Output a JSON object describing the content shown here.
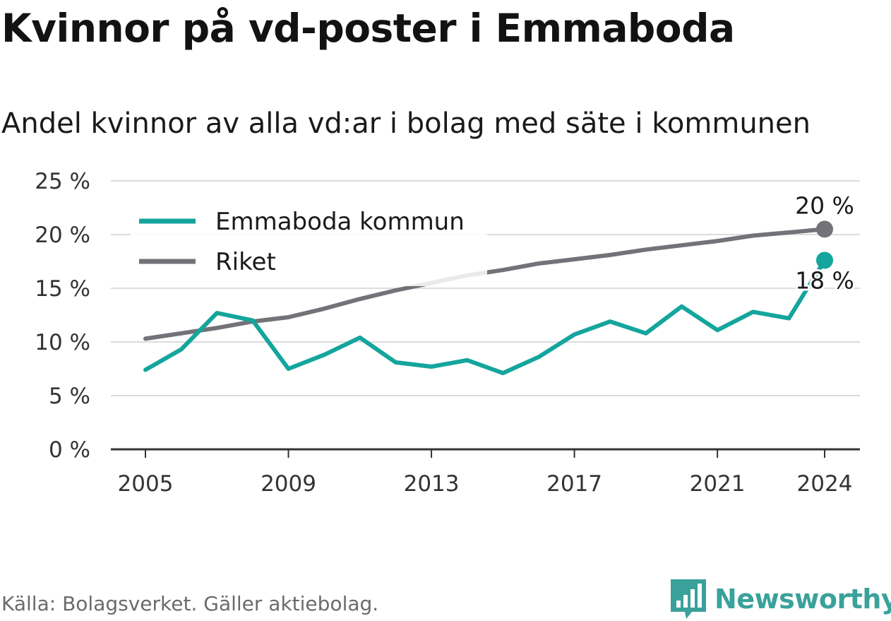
{
  "title": "Kvinnor på vd-poster i Emmaboda",
  "subtitle": "Andel kvinnor av alla vd:ar i bolag med säte i kommunen",
  "source": "Källa: Bolagsverket. Gäller aktiebolag.",
  "brand": {
    "name": "Newsworthy",
    "icon": "newsworthy-logo-icon",
    "color": "#3aa19b"
  },
  "chart_data": {
    "type": "line",
    "x": [
      2005,
      2006,
      2007,
      2008,
      2009,
      2010,
      2011,
      2012,
      2013,
      2014,
      2015,
      2016,
      2017,
      2018,
      2019,
      2020,
      2021,
      2022,
      2023,
      2024
    ],
    "series": [
      {
        "name": "Emmaboda kommun",
        "color": "#14a59d",
        "values": [
          7.4,
          9.3,
          12.7,
          12.0,
          7.5,
          8.8,
          10.4,
          8.1,
          7.7,
          8.3,
          7.1,
          8.6,
          10.7,
          11.9,
          10.8,
          13.3,
          11.1,
          12.8,
          12.2,
          17.6
        ]
      },
      {
        "name": "Riket",
        "color": "#737278",
        "values": [
          10.3,
          10.8,
          11.3,
          11.9,
          12.3,
          13.1,
          14.0,
          14.8,
          15.5,
          16.2,
          16.7,
          17.3,
          17.7,
          18.1,
          18.6,
          19.0,
          19.4,
          19.9,
          20.2,
          20.5
        ]
      }
    ],
    "end_labels": [
      "18 %",
      "20 %"
    ],
    "y_ticks": [
      "0 %",
      "5 %",
      "10 %",
      "15 %",
      "20 %",
      "25 %"
    ],
    "x_ticks": [
      "2005",
      "2009",
      "2013",
      "2017",
      "2021",
      "2024"
    ],
    "x_tick_values": [
      2005,
      2009,
      2013,
      2017,
      2021,
      2024
    ],
    "ylim": [
      0,
      25
    ],
    "grid": true,
    "legend_position": "top-left"
  }
}
